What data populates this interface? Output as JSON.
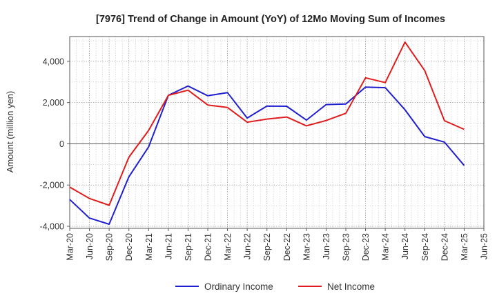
{
  "chart_data": {
    "type": "line",
    "title": "[7976]  Trend of Change in Amount (YoY) of 12Mo Moving Sum of Incomes",
    "xlabel": "",
    "ylabel": "Amount (million yen)",
    "ylim": [
      -4100,
      5200
    ],
    "yticks": [
      -4000,
      -2000,
      0,
      2000,
      4000
    ],
    "ytick_labels": [
      "-4,000",
      "-2,000",
      "0",
      "2,000",
      "4,000"
    ],
    "grid": true,
    "legend_position": "bottom-center",
    "categories": [
      "Mar-20",
      "Jun-20",
      "Sep-20",
      "Dec-20",
      "Mar-21",
      "Jun-21",
      "Sep-21",
      "Dec-21",
      "Mar-22",
      "Jun-22",
      "Sep-22",
      "Dec-22",
      "Mar-23",
      "Jun-23",
      "Sep-23",
      "Dec-23",
      "Mar-24",
      "Jun-24",
      "Sep-24",
      "Dec-24",
      "Mar-25",
      "Jun-25"
    ],
    "series": [
      {
        "name": "Ordinary Income",
        "color": "#1f1fcf",
        "values": [
          -2700,
          -3600,
          -3900,
          -1600,
          -150,
          2350,
          2800,
          2330,
          2480,
          1250,
          1830,
          1820,
          1150,
          1900,
          1930,
          2750,
          2720,
          1650,
          350,
          80,
          -1050,
          null
        ]
      },
      {
        "name": "Net Income",
        "color": "#e01c1c",
        "values": [
          -2100,
          -2650,
          -2980,
          -650,
          650,
          2350,
          2600,
          1880,
          1760,
          1050,
          1200,
          1300,
          870,
          1130,
          1480,
          3200,
          2970,
          4930,
          3550,
          1120,
          700,
          null
        ]
      }
    ]
  }
}
